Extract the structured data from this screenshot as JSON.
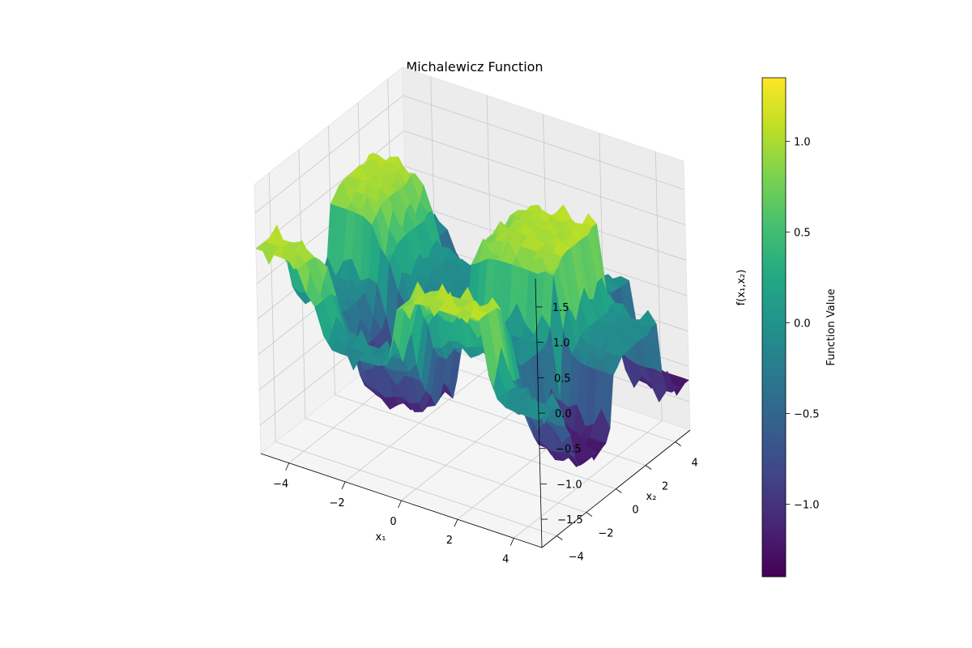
{
  "chart_data": {
    "type": "surface3d",
    "title": "Michalewicz Function",
    "xlabel": "x₁",
    "ylabel": "x₂",
    "zlabel": "f(x₁,x₂)",
    "xlim": [
      -5,
      5
    ],
    "ylim": [
      -5,
      5
    ],
    "zlim": [
      -1.9,
      1.9
    ],
    "x_ticks": [
      -4,
      -2,
      0,
      2,
      4
    ],
    "x_tick_labels": [
      "−4",
      "−2",
      "0",
      "2",
      "4"
    ],
    "y_ticks": [
      -4,
      -2,
      0,
      2,
      4
    ],
    "y_tick_labels": [
      "−4",
      "−2",
      "0",
      "2",
      "4"
    ],
    "z_ticks": [
      -1.5,
      -1.0,
      -0.5,
      0.0,
      0.5,
      1.0,
      1.5
    ],
    "z_tick_labels": [
      "−1.5",
      "−1.0",
      "−0.5",
      "0.0",
      "0.5",
      "1.0",
      "1.5"
    ],
    "colormap": "viridis",
    "surface_extremes": {
      "min": -1.4,
      "max": 1.35
    },
    "colorbar": {
      "label": "Function Value",
      "range": [
        -1.4,
        1.35
      ],
      "ticks": [
        -1.0,
        -0.5,
        0.0,
        0.5,
        1.0
      ],
      "tick_labels": [
        "−1.0",
        "−0.5",
        "0.0",
        "0.5",
        "1.0"
      ]
    },
    "grid": true
  }
}
